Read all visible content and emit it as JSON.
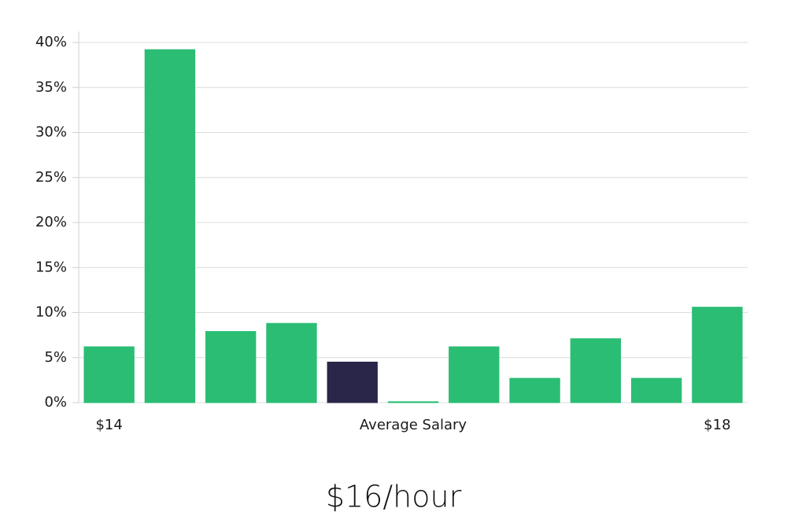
{
  "chart_data": {
    "type": "bar",
    "subtitle": "$16/hour",
    "categories": [
      "$14",
      null,
      null,
      null,
      null,
      "Average Salary",
      null,
      null,
      null,
      null,
      "$18"
    ],
    "values": [
      6.2,
      39.2,
      7.9,
      8.8,
      4.5,
      0.1,
      6.2,
      2.7,
      7.1,
      2.7,
      10.6
    ],
    "colors": [
      "#2bbd74",
      "#2bbd74",
      "#2bbd74",
      "#2bbd74",
      "#29264a",
      "#2bbd74",
      "#2bbd74",
      "#2bbd74",
      "#2bbd74",
      "#2bbd74",
      "#2bbd74"
    ],
    "ylim": [
      0,
      40
    ],
    "yticks": [
      {
        "value": 0,
        "label": "0%"
      },
      {
        "value": 5,
        "label": "5%"
      },
      {
        "value": 10,
        "label": "10%"
      },
      {
        "value": 15,
        "label": "15%"
      },
      {
        "value": 20,
        "label": "20%"
      },
      {
        "value": 25,
        "label": "25%"
      },
      {
        "value": 30,
        "label": "30%"
      },
      {
        "value": 35,
        "label": "35%"
      },
      {
        "value": 40,
        "label": "40%"
      }
    ],
    "grid": true
  }
}
